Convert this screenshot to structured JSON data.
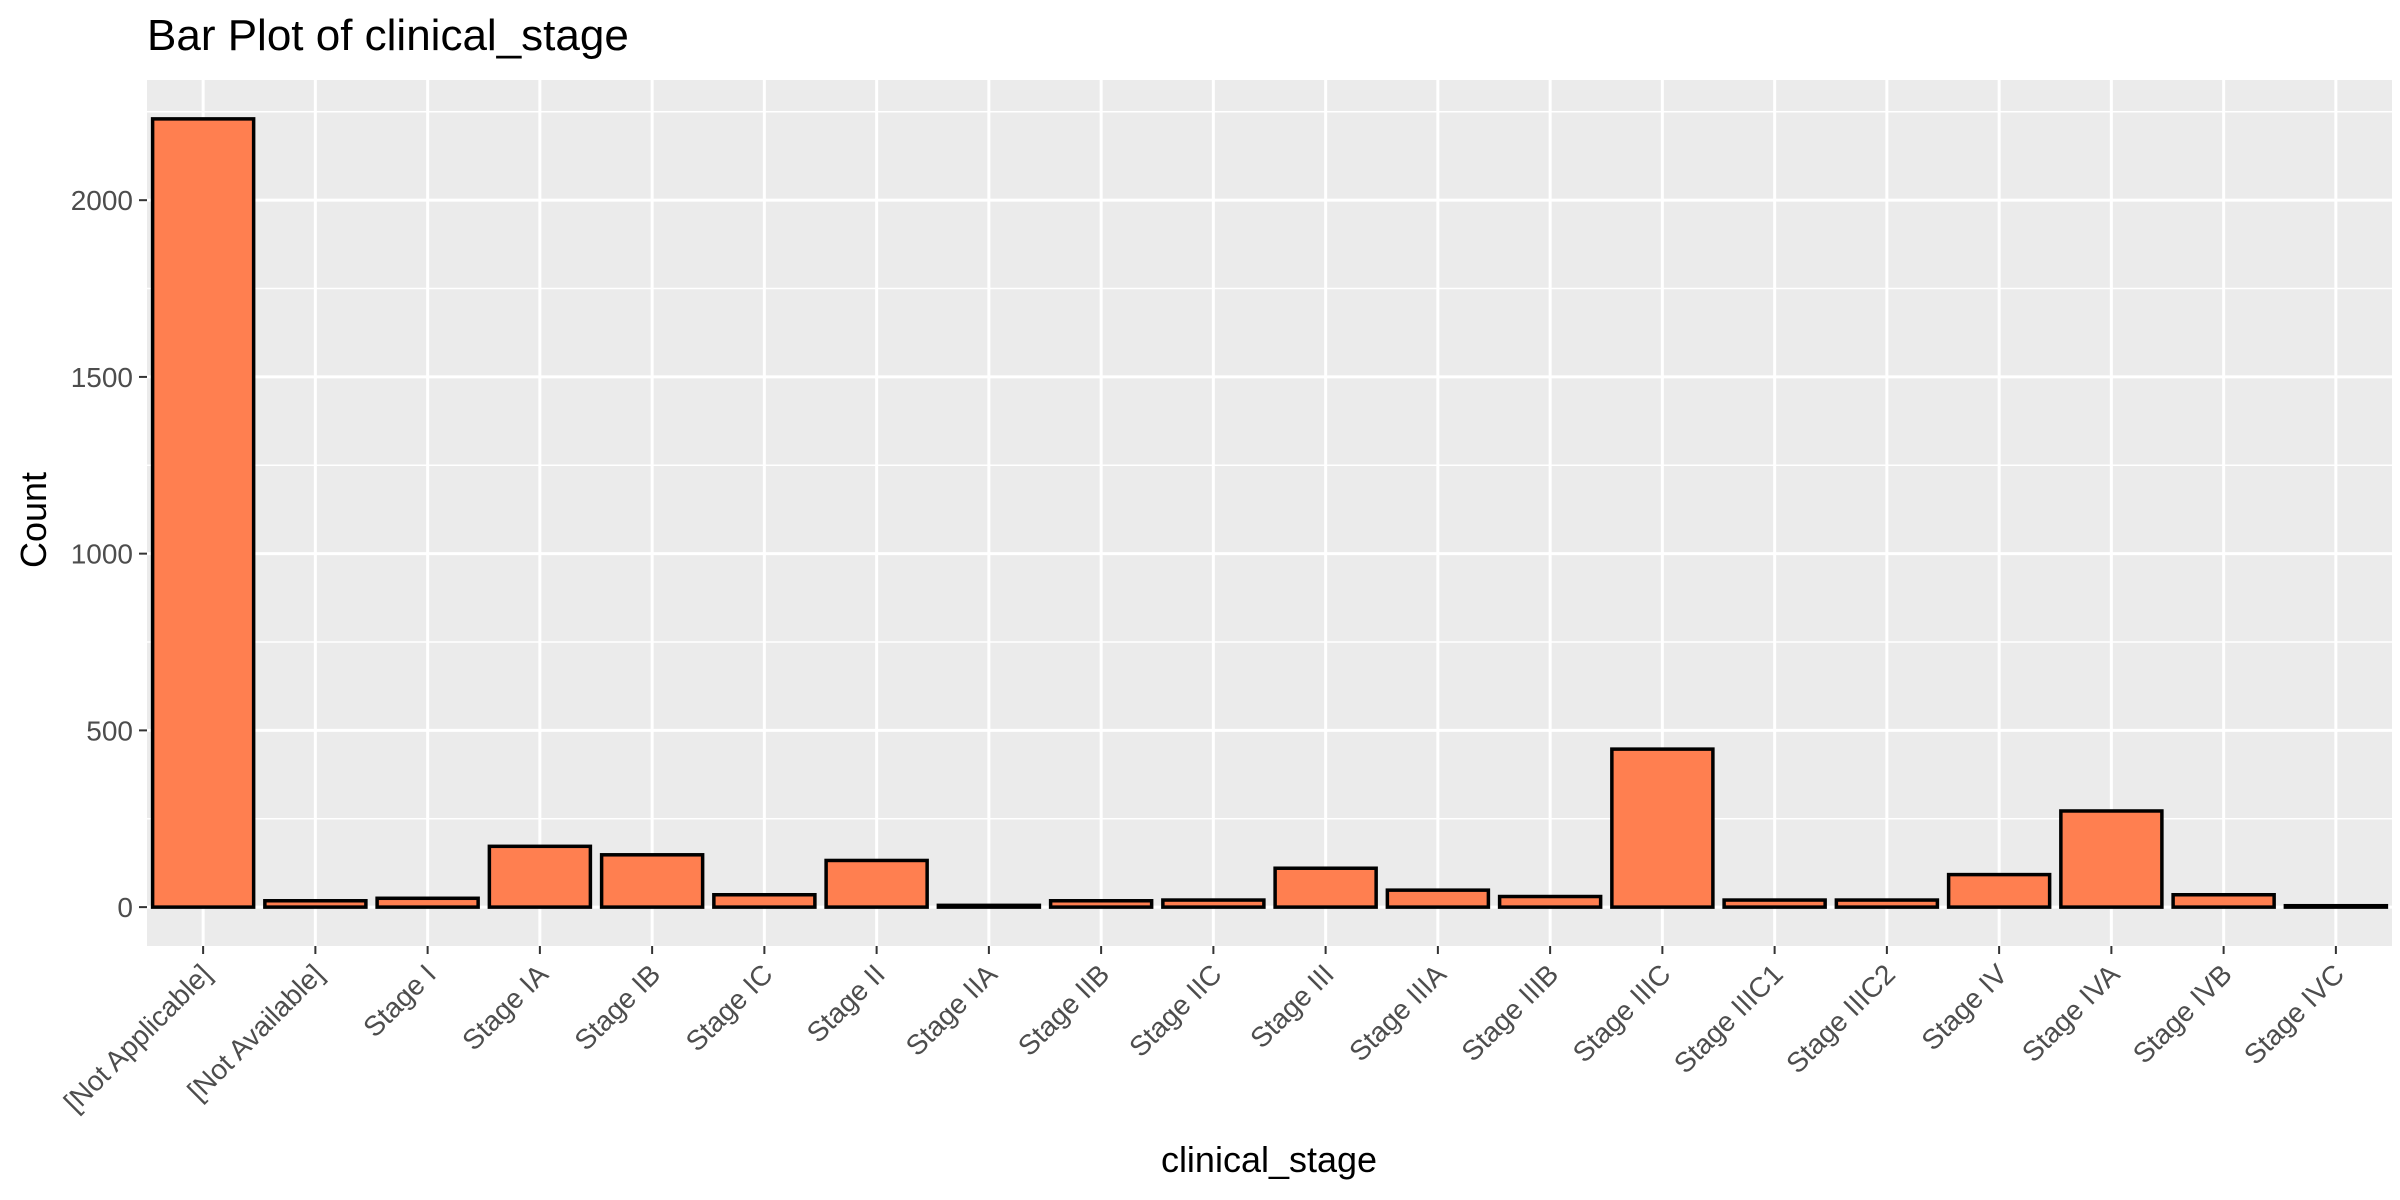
{
  "chart_data": {
    "type": "bar",
    "title": "Bar Plot of clinical_stage",
    "xlabel": "clinical_stage",
    "ylabel": "Count",
    "categories": [
      "[Not Applicable]",
      "[Not Available]",
      "Stage I",
      "Stage IA",
      "Stage IB",
      "Stage IC",
      "Stage II",
      "Stage IIA",
      "Stage IIB",
      "Stage IIC",
      "Stage III",
      "Stage IIIA",
      "Stage IIIB",
      "Stage IIIC",
      "Stage IIIC1",
      "Stage IIIC2",
      "Stage IV",
      "Stage IVA",
      "Stage IVB",
      "Stage IVC"
    ],
    "values": [
      2230,
      18,
      25,
      172,
      148,
      35,
      132,
      5,
      18,
      20,
      110,
      48,
      30,
      447,
      20,
      20,
      92,
      272,
      35,
      4
    ],
    "ylim": [
      -110,
      2340
    ],
    "yticks": [
      0,
      500,
      1000,
      1500,
      2000
    ],
    "grid": true,
    "colors": {
      "bar_fill": "#FF7F50",
      "bar_stroke": "#000000",
      "panel_background": "#EBEBEB",
      "grid": "#FFFFFF"
    }
  }
}
